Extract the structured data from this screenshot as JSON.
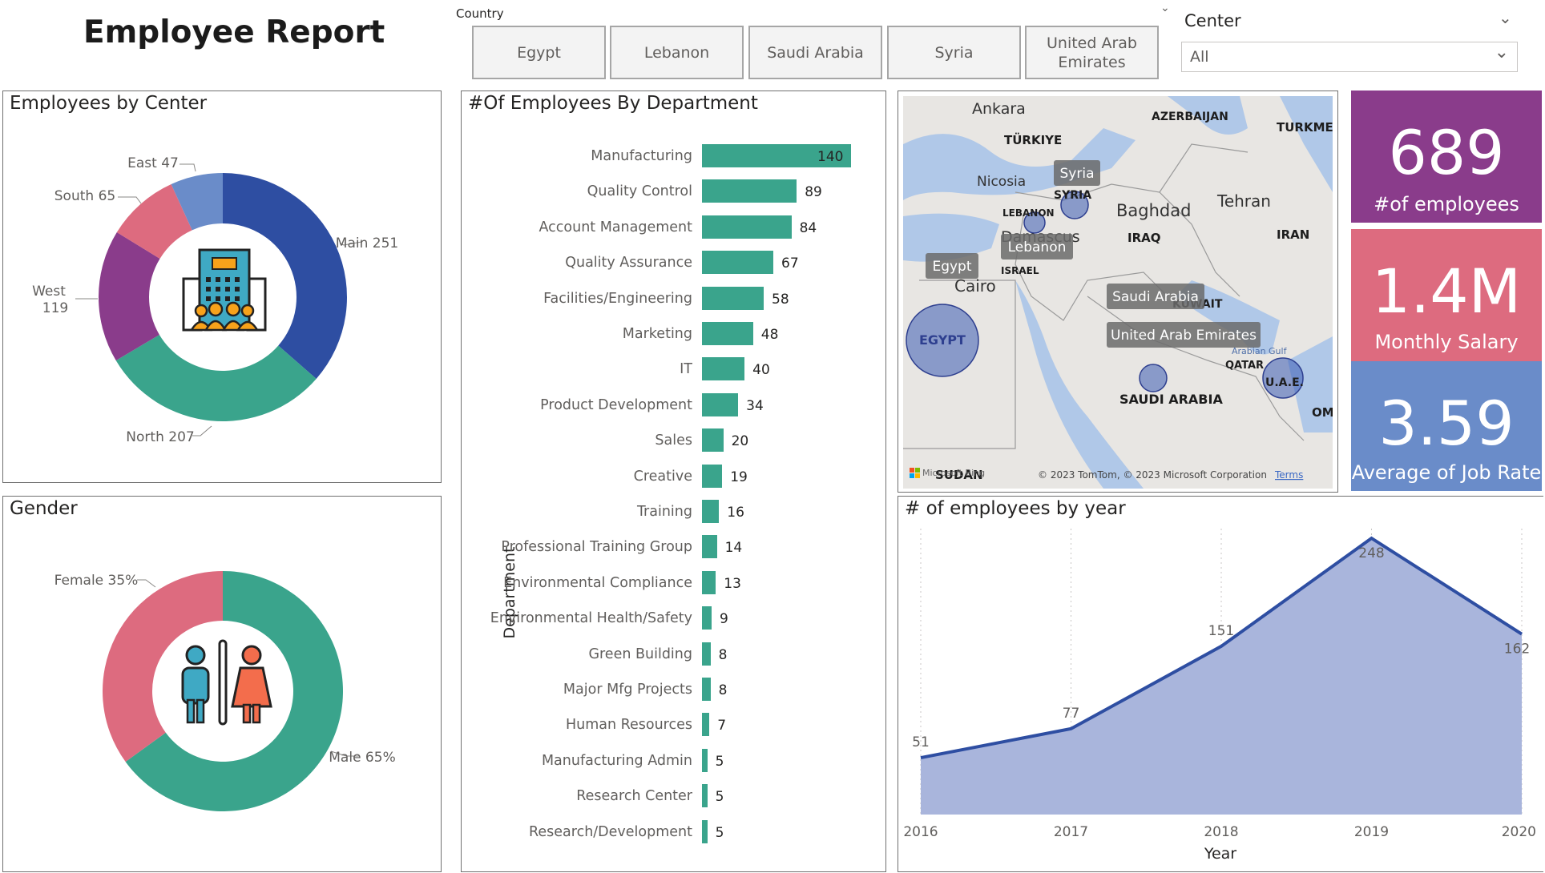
{
  "header": {
    "title": "Employee Report"
  },
  "country_slicer": {
    "label": "Country",
    "options": [
      "Egypt",
      "Lebanon",
      "Saudi Arabia",
      "Syria",
      "United Arab Emirates"
    ]
  },
  "center_slicer": {
    "label": "Center",
    "selected": "All"
  },
  "colors": {
    "teal": "#3aa48c",
    "blue": "#2e4ea2",
    "pink": "#dd6b7f",
    "purple": "#8a3c8b",
    "light_blue": "#6a8cc9",
    "kpi_purple": "#8a3c8b",
    "kpi_pink": "#dd6b7f",
    "kpi_blue": "#6a8cc9",
    "area_fill": "#a9b5dc",
    "area_line": "#2e4ea2"
  },
  "icons": {
    "center_donut": "office-building-people-icon",
    "gender_donut": "male-female-restroom-icon",
    "map_logo": "microsoft-bing-logo"
  },
  "kpis": [
    {
      "value": "689",
      "label": "#of employees",
      "color": "#8a3c8b"
    },
    {
      "value": "1.4M",
      "label": "Monthly Salary",
      "color": "#dd6b7f"
    },
    {
      "value": "3.59",
      "label": "Average of Job Rate",
      "color": "#6a8cc9"
    }
  ],
  "map": {
    "place_labels": [
      "Ankara",
      "TÜRKIYE",
      "AZERBAIJAN",
      "TURKME",
      "Nicosia",
      "SYRIA",
      "LEBANON",
      "Baghdad",
      "Tehran",
      "IRAQ",
      "IRAN",
      "Damascus",
      "ISRAEL",
      "Cairo",
      "KUWAIT",
      "EGYPT",
      "Arabian Gulf",
      "QATAR",
      "U.A.E.",
      "SAUDI ARABIA",
      "OM",
      "SUDAN"
    ],
    "bubble_labels": [
      "Syria",
      "Lebanon",
      "Egypt",
      "Saudi Arabia",
      "United Arab Emirates"
    ],
    "attribution": "© 2023 TomTom, © 2023 Microsoft Corporation",
    "terms": "Terms",
    "logo_text": "Microsoft Bing"
  },
  "chart_data": [
    {
      "type": "pie",
      "title": "Employees by Center",
      "donut": true,
      "categories": [
        "Main",
        "North",
        "West",
        "South",
        "East"
      ],
      "values": [
        251,
        207,
        119,
        65,
        47
      ],
      "colors": [
        "#2e4ea2",
        "#3aa48c",
        "#8a3c8b",
        "#dd6b7f",
        "#6a8cc9"
      ],
      "labels": [
        "Main 251",
        "North 207",
        "West",
        "119",
        "South 65",
        "East 47"
      ]
    },
    {
      "type": "pie",
      "title": "Gender",
      "donut": true,
      "categories": [
        "Male",
        "Female"
      ],
      "values": [
        65,
        35
      ],
      "colors": [
        "#3aa48c",
        "#dd6b7f"
      ],
      "labels": [
        "Male 65%",
        "Female 35%"
      ]
    },
    {
      "type": "bar",
      "orientation": "horizontal",
      "title": "#Of Employees By Department",
      "ylabel": "Department",
      "categories": [
        "Manufacturing",
        "Quality Control",
        "Account Management",
        "Quality Assurance",
        "Facilities/Engineering",
        "Marketing",
        "IT",
        "Product Development",
        "Sales",
        "Creative",
        "Training",
        "Professional Training Group",
        "Environmental Compliance",
        "Environmental Health/Safety",
        "Green Building",
        "Major Mfg Projects",
        "Human Resources",
        "Manufacturing Admin",
        "Research Center",
        "Research/Development"
      ],
      "values": [
        140,
        89,
        84,
        67,
        58,
        48,
        40,
        34,
        20,
        19,
        16,
        14,
        13,
        9,
        8,
        8,
        7,
        5,
        5,
        5
      ],
      "color": "#3aa48c"
    },
    {
      "type": "area",
      "title": "# of employees by year",
      "xlabel": "Year",
      "x": [
        2016,
        2017,
        2018,
        2019,
        2020
      ],
      "values": [
        51,
        77,
        151,
        248,
        162
      ],
      "ylim": [
        0,
        248
      ],
      "grid": true
    }
  ]
}
